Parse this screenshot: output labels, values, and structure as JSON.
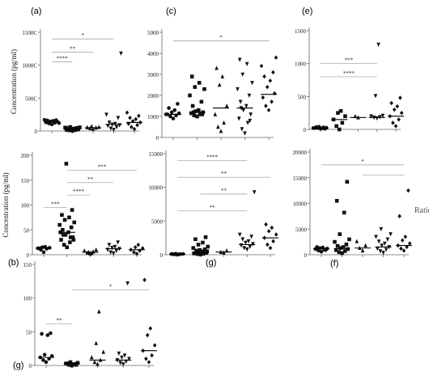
{
  "panel_labels": {
    "a": "(a)",
    "c": "(c)",
    "e": "(e)",
    "b": "(b)",
    "g": "(g)",
    "f": "(f)",
    "g2": "(g)"
  },
  "stray_text": "Ratio",
  "chart_data": [
    {
      "id": "p1",
      "type": "scatter",
      "panel_label": "(a)",
      "ylabel": "Concentration (pg/ml)",
      "yticks": [
        "0",
        "500C",
        "1000C",
        "1500C"
      ],
      "ylim": [
        0,
        15000
      ],
      "groups": [
        {
          "marker": "circle",
          "median": 1400,
          "values": [
            1000,
            1150,
            1250,
            1300,
            1400,
            1450,
            1550,
            1600,
            1650,
            1700,
            1200,
            1350
          ]
        },
        {
          "marker": "square",
          "median": 300,
          "values": [
            50,
            100,
            150,
            200,
            250,
            300,
            350,
            400,
            450,
            500,
            550,
            600,
            200,
            150,
            300,
            350,
            400,
            500
          ]
        },
        {
          "marker": "triangle",
          "median": 500,
          "values": [
            300,
            400,
            500,
            550,
            600,
            700
          ]
        },
        {
          "marker": "invtriangle",
          "median": 1000,
          "values": [
            200,
            400,
            600,
            800,
            900,
            1000,
            1100,
            1300,
            2000,
            2500,
            11800
          ]
        },
        {
          "marker": "diamond",
          "median": 1300,
          "values": [
            300,
            600,
            900,
            1100,
            1300,
            1500,
            1800,
            2000,
            2300,
            2800
          ]
        }
      ],
      "sig": [
        {
          "from": 0,
          "to": 1,
          "label": "****",
          "y": 10500
        },
        {
          "from": 0,
          "to": 2,
          "label": "**",
          "y": 12000
        },
        {
          "from": 0,
          "to": 3,
          "label": "*",
          "y": 14000
        }
      ]
    },
    {
      "id": "p2",
      "type": "scatter",
      "panel_label": "(c)",
      "ylabel": "",
      "yticks": [
        "0",
        "1000",
        "2000",
        "3000",
        "4000",
        "5000"
      ],
      "ylim": [
        0,
        5000
      ],
      "groups": [
        {
          "marker": "circle",
          "median": 1100,
          "values": [
            900,
            1000,
            1050,
            1100,
            1150,
            1200,
            1300,
            1400,
            1600,
            1100
          ]
        },
        {
          "marker": "square",
          "median": 1200,
          "values": [
            1000,
            1050,
            1100,
            1150,
            1200,
            1250,
            1300,
            1500,
            1700,
            2000,
            2300,
            2400,
            2600,
            2900,
            1100,
            1200
          ]
        },
        {
          "marker": "triangle",
          "median": 1400,
          "values": [
            300,
            500,
            700,
            1100,
            1500,
            2500,
            2900,
            3300
          ]
        },
        {
          "marker": "invtriangle",
          "median": 1400,
          "values": [
            200,
            400,
            700,
            900,
            1100,
            1300,
            1500,
            1700,
            2000,
            2300,
            2600,
            3000,
            3500,
            3700,
            800,
            1400
          ]
        },
        {
          "marker": "diamond",
          "median": 2050,
          "values": [
            1300,
            1500,
            1700,
            1900,
            2100,
            2400,
            2700,
            2900,
            3100,
            3400,
            3800
          ]
        }
      ],
      "sig": [
        {
          "from": 0,
          "to": 4,
          "label": "*",
          "y": 4600
        }
      ]
    },
    {
      "id": "p3",
      "type": "scatter",
      "panel_label": "(e)",
      "ylabel": "",
      "yticks": [
        "0",
        "500",
        "1000",
        "1500"
      ],
      "ylim": [
        0,
        1500
      ],
      "groups": [
        {
          "marker": "circle",
          "median": 20,
          "values": [
            10,
            20,
            30,
            20,
            25,
            40,
            15,
            35,
            10,
            20
          ]
        },
        {
          "marker": "square",
          "median": 150,
          "values": [
            0,
            50,
            100,
            150,
            200,
            250,
            280
          ]
        },
        {
          "marker": "triangle",
          "median": 180,
          "values": [
            180,
            200
          ]
        },
        {
          "marker": "invtriangle",
          "median": 180,
          "values": [
            170,
            180,
            190,
            200,
            210,
            510,
            1290
          ]
        },
        {
          "marker": "diamond",
          "median": 200,
          "values": [
            50,
            100,
            150,
            200,
            250,
            300,
            350,
            400,
            480
          ]
        }
      ],
      "sig": [
        {
          "from": 0,
          "to": 3,
          "label": "****",
          "y": 800
        },
        {
          "from": 0,
          "to": 3,
          "label": "***",
          "y": 1000
        }
      ]
    },
    {
      "id": "p4",
      "type": "scatter",
      "panel_label": "(b)",
      "ylabel": "Concentration (pg/ml)",
      "yticks": [
        "0",
        "50",
        "100",
        "150",
        "200"
      ],
      "ylim": [
        0,
        200
      ],
      "groups": [
        {
          "marker": "circle",
          "median": 13,
          "values": [
            5,
            10,
            12,
            13,
            14,
            15,
            16,
            13
          ]
        },
        {
          "marker": "square",
          "median": 45,
          "values": [
            15,
            20,
            25,
            30,
            35,
            40,
            45,
            50,
            55,
            60,
            65,
            70,
            75,
            80,
            90,
            40,
            35,
            45,
            30,
            183
          ]
        },
        {
          "marker": "triangle",
          "median": 5,
          "values": [
            2,
            4,
            6,
            8,
            10,
            5,
            3
          ]
        },
        {
          "marker": "invtriangle",
          "median": 12,
          "values": [
            3,
            5,
            8,
            10,
            12,
            14,
            16,
            20,
            25
          ]
        },
        {
          "marker": "diamond",
          "median": 10,
          "values": [
            2,
            5,
            8,
            10,
            13,
            15,
            20
          ]
        }
      ],
      "sig": [
        {
          "from": 0,
          "to": 1,
          "label": "***",
          "y": 95
        },
        {
          "from": 1,
          "to": 2,
          "label": "****",
          "y": 120
        },
        {
          "from": 1,
          "to": 3,
          "label": "**",
          "y": 145
        },
        {
          "from": 1,
          "to": 4,
          "label": "***",
          "y": 170
        }
      ]
    },
    {
      "id": "p5",
      "type": "scatter",
      "panel_label": "(g)",
      "ylabel": "",
      "yticks": [
        "0",
        "5000",
        "10000",
        "15000"
      ],
      "ylim": [
        0,
        15000
      ],
      "groups": [
        {
          "marker": "circle",
          "median": 100,
          "values": [
            20,
            50,
            80,
            100,
            120,
            150,
            60,
            90
          ]
        },
        {
          "marker": "square",
          "median": 300,
          "values": [
            50,
            100,
            150,
            200,
            300,
            400,
            500,
            600,
            800,
            1000,
            1200,
            1500,
            1800,
            2300,
            2600,
            300,
            400,
            200,
            500,
            700
          ]
        },
        {
          "marker": "triangle",
          "median": 400,
          "values": [
            300,
            400,
            600
          ]
        },
        {
          "marker": "invtriangle",
          "median": 1500,
          "values": [
            800,
            1000,
            1200,
            1400,
            1600,
            1800,
            2000,
            2300,
            2700,
            3000,
            9300
          ]
        },
        {
          "marker": "diamond",
          "median": 2500,
          "values": [
            1000,
            1500,
            2000,
            2500,
            3000,
            3500,
            4000,
            4500
          ]
        }
      ],
      "sig": [
        {
          "from": 0,
          "to": 3,
          "label": "**",
          "y": 6500
        },
        {
          "from": 1,
          "to": 3,
          "label": "**",
          "y": 9000
        },
        {
          "from": 0,
          "to": 4,
          "label": "**",
          "y": 11500
        },
        {
          "from": 0,
          "to": 3,
          "label": "****",
          "y": 14000
        }
      ]
    },
    {
      "id": "p6",
      "type": "scatter",
      "panel_label": "(f)",
      "ylabel": "",
      "yticks": [
        "0",
        "5000",
        "10000",
        "15000",
        "20000"
      ],
      "ylim": [
        0,
        20000
      ],
      "groups": [
        {
          "marker": "circle",
          "median": 1200,
          "values": [
            600,
            800,
            1000,
            1100,
            1200,
            1300,
            1400,
            1500,
            900
          ]
        },
        {
          "marker": "square",
          "median": 1200,
          "values": [
            300,
            500,
            700,
            900,
            1100,
            1300,
            1500,
            1700,
            2000,
            2500,
            3000,
            4000,
            8200,
            10500,
            14200
          ]
        },
        {
          "marker": "triangle",
          "median": 1300,
          "values": [
            800,
            1300,
            1800,
            2600
          ]
        },
        {
          "marker": "invtriangle",
          "median": 1500,
          "values": [
            400,
            700,
            1000,
            1200,
            1500,
            1800,
            2200,
            2600,
            3000,
            3500,
            4000,
            5000
          ]
        },
        {
          "marker": "diamond",
          "median": 1800,
          "values": [
            800,
            1200,
            1500,
            1800,
            2200,
            2800,
            3500,
            7500,
            12500
          ]
        }
      ],
      "sig": [
        {
          "from": 2,
          "to": 4,
          "label": "",
          "y": 15500
        },
        {
          "from": 0,
          "to": 4,
          "label": "*",
          "y": 17500
        }
      ]
    },
    {
      "id": "p7",
      "type": "scatter",
      "panel_label": "(g)",
      "ylabel": "",
      "yticks": [
        "0",
        "50",
        "100",
        "150"
      ],
      "ylim": [
        0,
        150
      ],
      "groups": [
        {
          "marker": "circle",
          "median": 12,
          "values": [
            5,
            8,
            10,
            12,
            14,
            16,
            45,
            47,
            48
          ]
        },
        {
          "marker": "square",
          "median": 3,
          "values": [
            0,
            1,
            2,
            3,
            4,
            5,
            2,
            3,
            1
          ]
        },
        {
          "marker": "triangle",
          "median": 8,
          "values": [
            2,
            5,
            8,
            12,
            20,
            33,
            80
          ]
        },
        {
          "marker": "invtriangle",
          "median": 8,
          "values": [
            2,
            4,
            6,
            8,
            10,
            12,
            15,
            18,
            122
          ]
        },
        {
          "marker": "diamond",
          "median": 22,
          "values": [
            5,
            10,
            15,
            22,
            30,
            45,
            55,
            127
          ]
        }
      ],
      "sig": [
        {
          "from": 0,
          "to": 1,
          "label": "**",
          "y": 62
        },
        {
          "from": 1,
          "to": 4,
          "label": "*",
          "y": 112
        }
      ]
    }
  ]
}
